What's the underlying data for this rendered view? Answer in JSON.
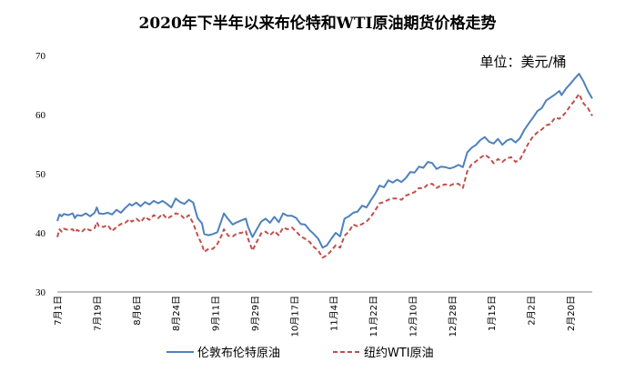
{
  "chart_data": {
    "type": "line",
    "title": "2020年下半年以来布伦特和WTI原油期货价格走势",
    "unit_label": "单位：美元/桶",
    "xlabel": "",
    "ylabel": "",
    "ylim": [
      30,
      70
    ],
    "yticks": [
      "30",
      "40",
      "50",
      "60",
      "70"
    ],
    "ytick_values": [
      30,
      40,
      50,
      60,
      70
    ],
    "grid": false,
    "legend_position": "bottom",
    "x_tick_labels": [
      "7月1日",
      "7月19日",
      "8月6日",
      "8月24日",
      "9月11日",
      "9月29日",
      "10月17日",
      "11月4日",
      "11月22日",
      "12月10日",
      "12月28日",
      "1月15日",
      "2月2日",
      "2月20日"
    ],
    "x_tick_days": [
      0,
      18,
      36,
      54,
      72,
      90,
      108,
      126,
      144,
      162,
      180,
      198,
      216,
      234
    ],
    "x_range_days": [
      0,
      244
    ],
    "series": [
      {
        "name": "伦敦布伦特原油",
        "color": "#4f81bd",
        "style": "solid",
        "points": [
          [
            0,
            42.0
          ],
          [
            1,
            43.1
          ],
          [
            2,
            42.8
          ],
          [
            3,
            43.2
          ],
          [
            5,
            43.0
          ],
          [
            7,
            43.3
          ],
          [
            8,
            42.5
          ],
          [
            9,
            43.0
          ],
          [
            11,
            42.9
          ],
          [
            13,
            43.3
          ],
          [
            15,
            42.8
          ],
          [
            17,
            43.4
          ],
          [
            18,
            44.3
          ],
          [
            19,
            43.3
          ],
          [
            21,
            43.2
          ],
          [
            23,
            43.4
          ],
          [
            25,
            43.1
          ],
          [
            27,
            43.9
          ],
          [
            29,
            43.4
          ],
          [
            31,
            44.2
          ],
          [
            33,
            44.9
          ],
          [
            34,
            44.6
          ],
          [
            36,
            45.1
          ],
          [
            38,
            44.5
          ],
          [
            40,
            45.2
          ],
          [
            42,
            44.8
          ],
          [
            44,
            45.4
          ],
          [
            46,
            45.0
          ],
          [
            48,
            45.4
          ],
          [
            50,
            44.9
          ],
          [
            52,
            44.3
          ],
          [
            54,
            45.8
          ],
          [
            56,
            45.2
          ],
          [
            58,
            44.9
          ],
          [
            60,
            45.6
          ],
          [
            62,
            45.1
          ],
          [
            64,
            42.5
          ],
          [
            66,
            41.6
          ],
          [
            67,
            39.8
          ],
          [
            69,
            39.6
          ],
          [
            71,
            39.8
          ],
          [
            73,
            40.1
          ],
          [
            75,
            42.2
          ],
          [
            76,
            43.3
          ],
          [
            78,
            42.3
          ],
          [
            80,
            41.4
          ],
          [
            82,
            41.8
          ],
          [
            84,
            42.1
          ],
          [
            86,
            42.4
          ],
          [
            87,
            41.0
          ],
          [
            89,
            39.3
          ],
          [
            91,
            40.6
          ],
          [
            93,
            41.9
          ],
          [
            95,
            42.4
          ],
          [
            97,
            41.7
          ],
          [
            99,
            42.7
          ],
          [
            101,
            41.8
          ],
          [
            103,
            43.3
          ],
          [
            105,
            42.9
          ],
          [
            107,
            42.9
          ],
          [
            109,
            42.5
          ],
          [
            111,
            41.5
          ],
          [
            113,
            41.4
          ],
          [
            115,
            40.5
          ],
          [
            117,
            39.8
          ],
          [
            119,
            39.0
          ],
          [
            121,
            37.5
          ],
          [
            123,
            37.9
          ],
          [
            125,
            39.0
          ],
          [
            127,
            40.0
          ],
          [
            129,
            39.4
          ],
          [
            131,
            42.4
          ],
          [
            133,
            42.8
          ],
          [
            135,
            43.4
          ],
          [
            137,
            43.6
          ],
          [
            139,
            44.6
          ],
          [
            141,
            44.3
          ],
          [
            143,
            45.5
          ],
          [
            145,
            46.6
          ],
          [
            147,
            48.0
          ],
          [
            149,
            47.7
          ],
          [
            151,
            48.9
          ],
          [
            153,
            48.5
          ],
          [
            155,
            49.0
          ],
          [
            157,
            48.6
          ],
          [
            159,
            49.3
          ],
          [
            161,
            50.3
          ],
          [
            163,
            50.2
          ],
          [
            165,
            51.2
          ],
          [
            167,
            51.0
          ],
          [
            169,
            52.0
          ],
          [
            171,
            51.8
          ],
          [
            173,
            50.8
          ],
          [
            175,
            51.2
          ],
          [
            177,
            51.1
          ],
          [
            179,
            50.9
          ],
          [
            181,
            51.1
          ],
          [
            183,
            51.5
          ],
          [
            185,
            51.1
          ],
          [
            187,
            53.6
          ],
          [
            189,
            54.4
          ],
          [
            191,
            54.9
          ],
          [
            193,
            55.7
          ],
          [
            195,
            56.2
          ],
          [
            197,
            55.4
          ],
          [
            199,
            55.1
          ],
          [
            201,
            55.9
          ],
          [
            203,
            54.9
          ],
          [
            205,
            55.6
          ],
          [
            207,
            55.9
          ],
          [
            209,
            55.3
          ],
          [
            211,
            56.0
          ],
          [
            213,
            57.4
          ],
          [
            215,
            58.5
          ],
          [
            217,
            59.5
          ],
          [
            219,
            60.6
          ],
          [
            221,
            61.1
          ],
          [
            223,
            62.4
          ],
          [
            225,
            62.9
          ],
          [
            227,
            63.4
          ],
          [
            229,
            64.0
          ],
          [
            230,
            63.3
          ],
          [
            232,
            64.4
          ],
          [
            234,
            65.2
          ],
          [
            236,
            66.1
          ],
          [
            238,
            66.9
          ],
          [
            240,
            65.6
          ],
          [
            242,
            64.0
          ],
          [
            244,
            62.7
          ]
        ]
      },
      {
        "name": "纽约WTI原油",
        "color": "#c0504d",
        "style": "dashed",
        "points": [
          [
            0,
            39.3
          ],
          [
            1,
            40.6
          ],
          [
            2,
            40.2
          ],
          [
            3,
            40.7
          ],
          [
            5,
            40.5
          ],
          [
            7,
            40.6
          ],
          [
            8,
            40.1
          ],
          [
            9,
            40.5
          ],
          [
            11,
            40.1
          ],
          [
            13,
            40.8
          ],
          [
            15,
            40.4
          ],
          [
            17,
            40.8
          ],
          [
            18,
            41.8
          ],
          [
            19,
            41.1
          ],
          [
            21,
            41.0
          ],
          [
            23,
            41.3
          ],
          [
            25,
            40.3
          ],
          [
            27,
            41.0
          ],
          [
            29,
            41.5
          ],
          [
            31,
            41.7
          ],
          [
            33,
            42.3
          ],
          [
            34,
            41.9
          ],
          [
            36,
            42.4
          ],
          [
            38,
            41.8
          ],
          [
            40,
            42.7
          ],
          [
            42,
            42.2
          ],
          [
            44,
            43.0
          ],
          [
            46,
            42.5
          ],
          [
            48,
            43.2
          ],
          [
            50,
            42.4
          ],
          [
            52,
            42.8
          ],
          [
            54,
            43.3
          ],
          [
            56,
            43.1
          ],
          [
            58,
            42.4
          ],
          [
            60,
            43.0
          ],
          [
            62,
            41.6
          ],
          [
            64,
            39.6
          ],
          [
            66,
            38.0
          ],
          [
            67,
            36.8
          ],
          [
            69,
            37.3
          ],
          [
            71,
            37.3
          ],
          [
            73,
            38.1
          ],
          [
            75,
            39.6
          ],
          [
            76,
            40.6
          ],
          [
            78,
            39.5
          ],
          [
            80,
            39.4
          ],
          [
            82,
            39.9
          ],
          [
            84,
            40.0
          ],
          [
            86,
            40.3
          ],
          [
            87,
            39.0
          ],
          [
            89,
            37.0
          ],
          [
            91,
            38.5
          ],
          [
            93,
            39.9
          ],
          [
            95,
            40.2
          ],
          [
            97,
            39.6
          ],
          [
            99,
            40.3
          ],
          [
            101,
            39.6
          ],
          [
            103,
            40.9
          ],
          [
            105,
            40.6
          ],
          [
            107,
            40.9
          ],
          [
            109,
            40.2
          ],
          [
            111,
            39.4
          ],
          [
            113,
            39.0
          ],
          [
            115,
            38.5
          ],
          [
            117,
            37.6
          ],
          [
            119,
            37.0
          ],
          [
            121,
            35.8
          ],
          [
            123,
            36.2
          ],
          [
            125,
            37.0
          ],
          [
            127,
            37.9
          ],
          [
            129,
            37.5
          ],
          [
            131,
            39.5
          ],
          [
            133,
            40.2
          ],
          [
            135,
            41.4
          ],
          [
            137,
            41.1
          ],
          [
            139,
            41.5
          ],
          [
            141,
            41.9
          ],
          [
            143,
            42.7
          ],
          [
            145,
            43.8
          ],
          [
            147,
            45.0
          ],
          [
            149,
            45.2
          ],
          [
            151,
            45.6
          ],
          [
            153,
            45.8
          ],
          [
            155,
            45.8
          ],
          [
            157,
            45.6
          ],
          [
            159,
            46.3
          ],
          [
            161,
            46.6
          ],
          [
            163,
            46.9
          ],
          [
            165,
            47.6
          ],
          [
            167,
            47.5
          ],
          [
            169,
            48.2
          ],
          [
            171,
            48.3
          ],
          [
            173,
            47.6
          ],
          [
            175,
            48.0
          ],
          [
            177,
            48.2
          ],
          [
            179,
            48.0
          ],
          [
            181,
            48.3
          ],
          [
            183,
            48.3
          ],
          [
            185,
            47.6
          ],
          [
            187,
            50.4
          ],
          [
            189,
            51.6
          ],
          [
            191,
            52.1
          ],
          [
            193,
            52.7
          ],
          [
            195,
            53.2
          ],
          [
            197,
            52.7
          ],
          [
            199,
            51.8
          ],
          [
            201,
            52.5
          ],
          [
            203,
            52.0
          ],
          [
            205,
            52.6
          ],
          [
            207,
            52.8
          ],
          [
            209,
            52.0
          ],
          [
            211,
            52.4
          ],
          [
            213,
            53.8
          ],
          [
            215,
            55.2
          ],
          [
            217,
            56.3
          ],
          [
            219,
            57.0
          ],
          [
            221,
            57.5
          ],
          [
            223,
            58.2
          ],
          [
            225,
            58.4
          ],
          [
            227,
            59.5
          ],
          [
            229,
            59.3
          ],
          [
            230,
            59.6
          ],
          [
            232,
            60.4
          ],
          [
            234,
            61.5
          ],
          [
            236,
            62.4
          ],
          [
            238,
            63.5
          ],
          [
            240,
            61.9
          ],
          [
            242,
            61.1
          ],
          [
            244,
            59.8
          ]
        ]
      }
    ]
  }
}
